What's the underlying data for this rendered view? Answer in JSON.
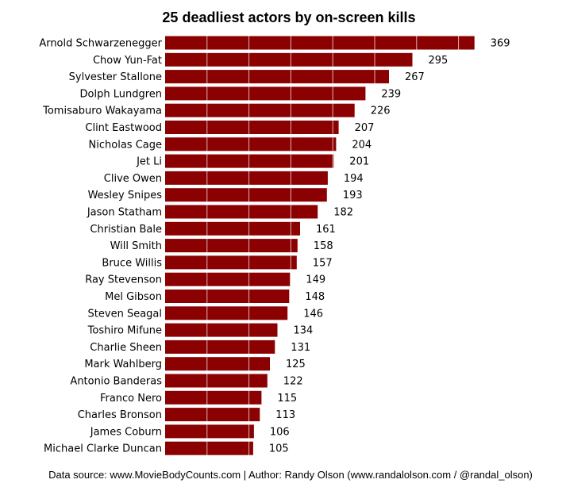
{
  "chart_data": {
    "type": "bar",
    "orientation": "horizontal",
    "title": "25 deadliest actors by on-screen kills",
    "xlabel": "",
    "ylabel": "",
    "xlim": [
      0,
      390
    ],
    "grid": true,
    "bar_color": "#8b0000",
    "grid_color": "#ffffff",
    "categories": [
      "Arnold Schwarzenegger",
      "Chow Yun-Fat",
      "Sylvester Stallone",
      "Dolph Lundgren",
      "Tomisaburo Wakayama",
      "Clint Eastwood",
      "Nicholas Cage",
      "Jet Li",
      "Clive Owen",
      "Wesley Snipes",
      "Jason Statham",
      "Christian Bale",
      "Will Smith",
      "Bruce Willis",
      "Ray Stevenson",
      "Mel Gibson",
      "Steven Seagal",
      "Toshiro Mifune",
      "Charlie Sheen",
      "Mark Wahlberg",
      "Antonio Banderas",
      "Franco Nero",
      "Charles Bronson",
      "James Coburn",
      "Michael Clarke Duncan"
    ],
    "values": [
      369,
      295,
      267,
      239,
      226,
      207,
      204,
      201,
      194,
      193,
      182,
      161,
      158,
      157,
      149,
      148,
      146,
      134,
      131,
      125,
      122,
      115,
      113,
      106,
      105
    ]
  },
  "source_note": "Data source: www.MovieBodyCounts.com | Author: Randy Olson (www.randalolson.com / @randal_olson)"
}
